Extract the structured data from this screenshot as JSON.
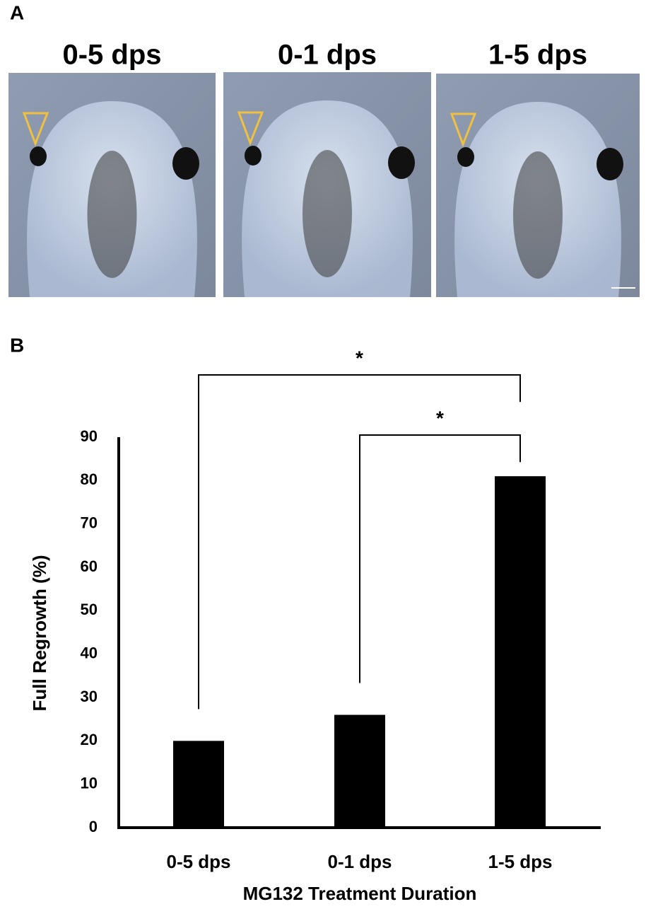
{
  "panel_a": {
    "label": "A",
    "image_titles": [
      "0-5 dps",
      "0-1 dps",
      "1-5 dps"
    ]
  },
  "chart_data": {
    "panel_label": "B",
    "type": "bar",
    "xlabel": "MG132 Treatment Duration",
    "ylabel": "Full Regrowth (%)",
    "categories": [
      "0-5 dps",
      "0-1 dps",
      "1-5 dps"
    ],
    "values": [
      20,
      26,
      81
    ],
    "color": "#000000",
    "ylim": [
      0,
      90
    ],
    "yticks": [
      0,
      10,
      20,
      30,
      40,
      50,
      60,
      70,
      80,
      90
    ],
    "grid": false,
    "annotations": [
      {
        "text": "*",
        "between": [
          "0-5 dps",
          "1-5 dps"
        ]
      },
      {
        "text": "*",
        "between": [
          "0-1 dps",
          "1-5 dps"
        ]
      }
    ]
  }
}
